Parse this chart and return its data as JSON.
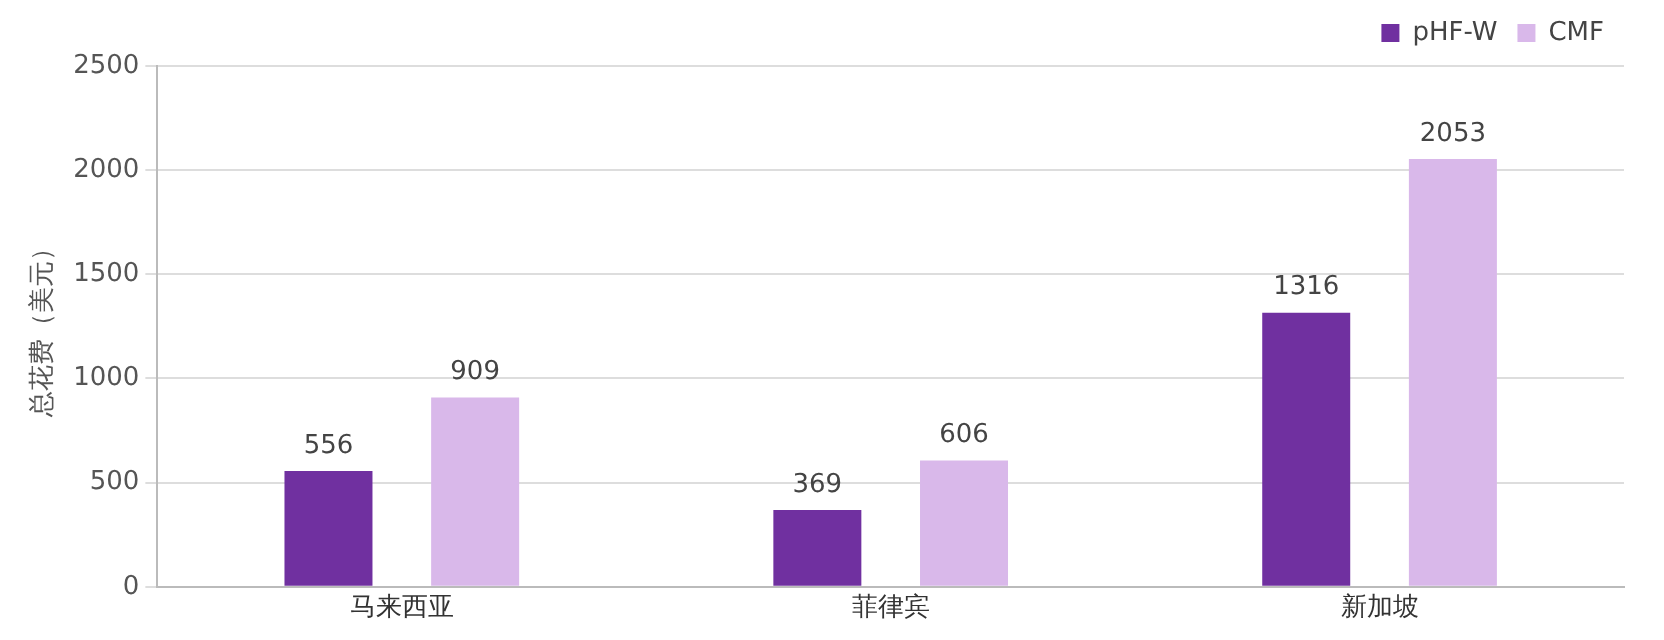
{
  "chart_data": {
    "type": "bar",
    "ylabel": "总花费（美元）",
    "categories": [
      "马来西亚",
      "菲律宾",
      "新加坡"
    ],
    "series": [
      {
        "name": "pHF-W",
        "color": "#7030a0",
        "values": [
          556,
          369,
          1316
        ]
      },
      {
        "name": "CMF",
        "color": "#d9b8ea",
        "values": [
          909,
          606,
          2053
        ]
      }
    ],
    "ylim": [
      0,
      2500
    ],
    "yticks": [
      0,
      500,
      1000,
      1500,
      2000,
      2500
    ],
    "grid": "y",
    "legend": "top right",
    "data_labels": true
  }
}
